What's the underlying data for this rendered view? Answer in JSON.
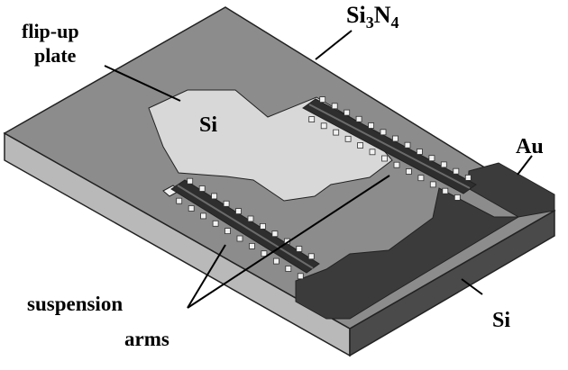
{
  "labels": {
    "flip_up_line1": "flip-up",
    "flip_up_line2": "plate",
    "plate_material": "Si",
    "membrane_base": "Si",
    "membrane_sub1": "3",
    "membrane_mid": "N",
    "membrane_sub2": "4",
    "electrode": "Au",
    "suspension_line1": "suspension",
    "suspension_line2": "arms",
    "substrate": "Si"
  },
  "colors": {
    "top_surface": "#8c8c8c",
    "left_face": "#4a4a4a",
    "front_face": "#b9b9b9",
    "plate": "#d8d8d8",
    "electrode_pad": "#3b3b3b",
    "arm": "#2e2e2e",
    "anchor": "#f2f2f2"
  }
}
